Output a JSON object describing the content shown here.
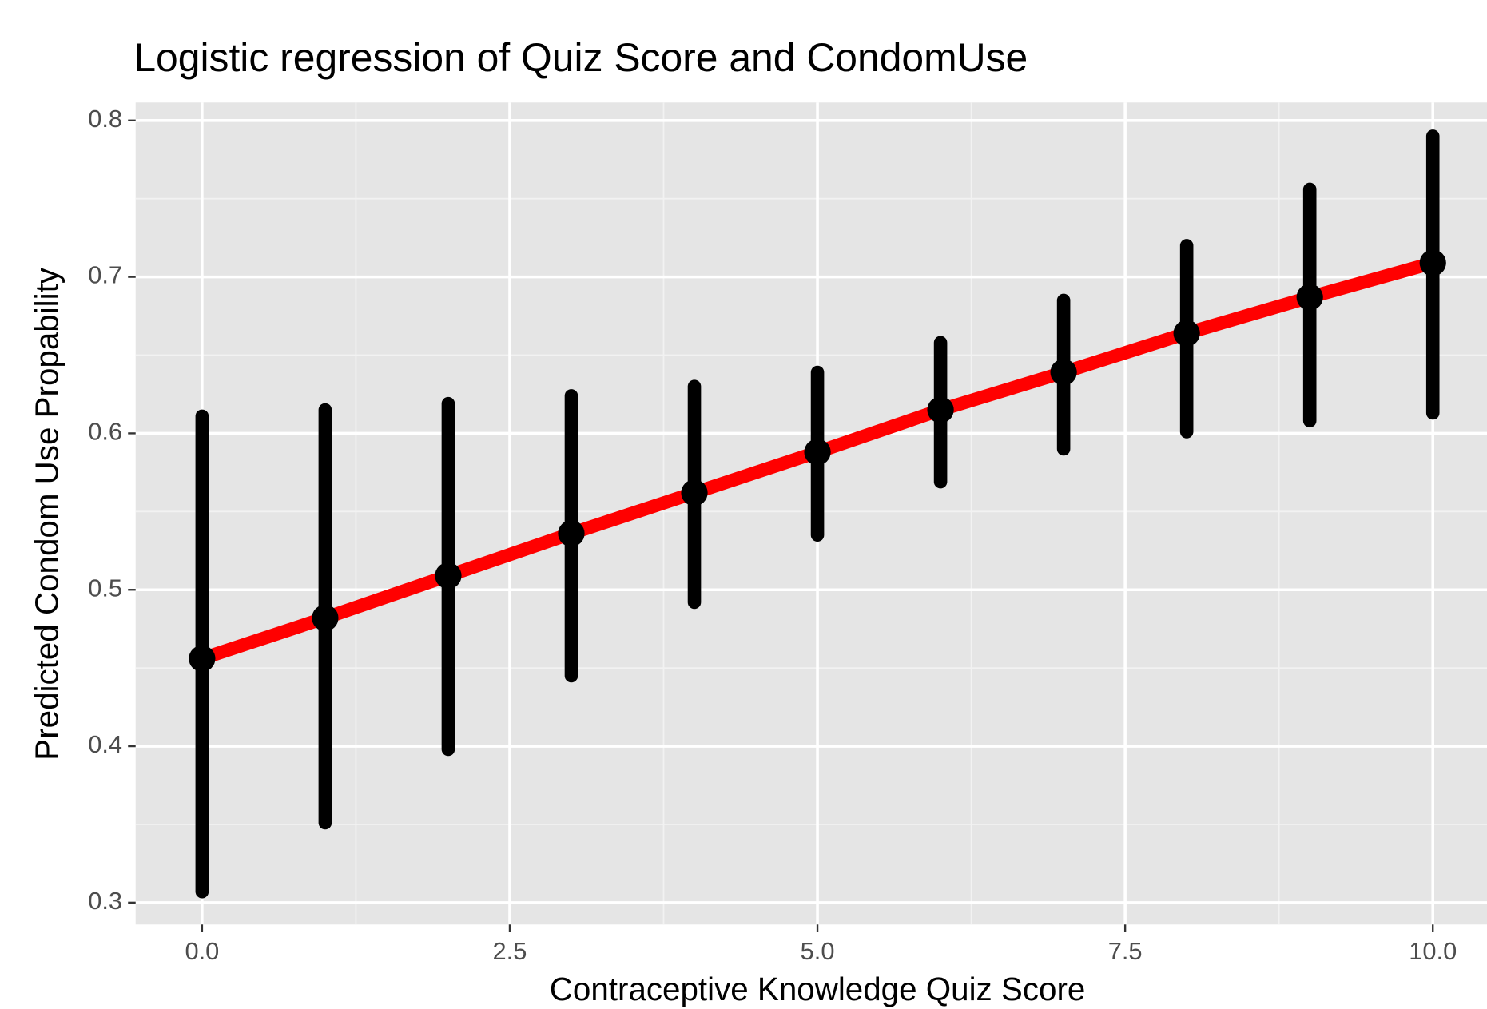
{
  "chart_data": {
    "type": "errorbar_line",
    "title": "Logistic regression of Quiz Score and CondomUse",
    "x_label": "Contraceptive Knowledge Quiz Score",
    "y_label": "Predicted Condom Use Propability",
    "x": [
      0,
      1,
      2,
      3,
      4,
      5,
      6,
      7,
      8,
      9,
      10
    ],
    "values": [
      0.456,
      0.482,
      0.509,
      0.536,
      0.562,
      0.588,
      0.615,
      0.639,
      0.664,
      0.687,
      0.709
    ],
    "lower": [
      0.307,
      0.351,
      0.398,
      0.445,
      0.492,
      0.535,
      0.569,
      0.59,
      0.601,
      0.608,
      0.613
    ],
    "upper": [
      0.611,
      0.615,
      0.619,
      0.624,
      0.63,
      0.639,
      0.658,
      0.685,
      0.72,
      0.756,
      0.79
    ],
    "line_color": "#ff0000",
    "point_color": "#000000",
    "xlim": [
      -0.54,
      10.44
    ],
    "ylim": [
      0.286,
      0.8115
    ],
    "xticks": [
      {
        "value": 0,
        "label": "0.0"
      },
      2.5,
      {
        "value": 5,
        "label": "5.0"
      },
      7.5,
      {
        "value": 10,
        "label": "10.0"
      }
    ],
    "yticks": [
      0.3,
      0.4,
      0.5,
      0.6,
      0.7,
      0.8
    ],
    "grid": true
  }
}
